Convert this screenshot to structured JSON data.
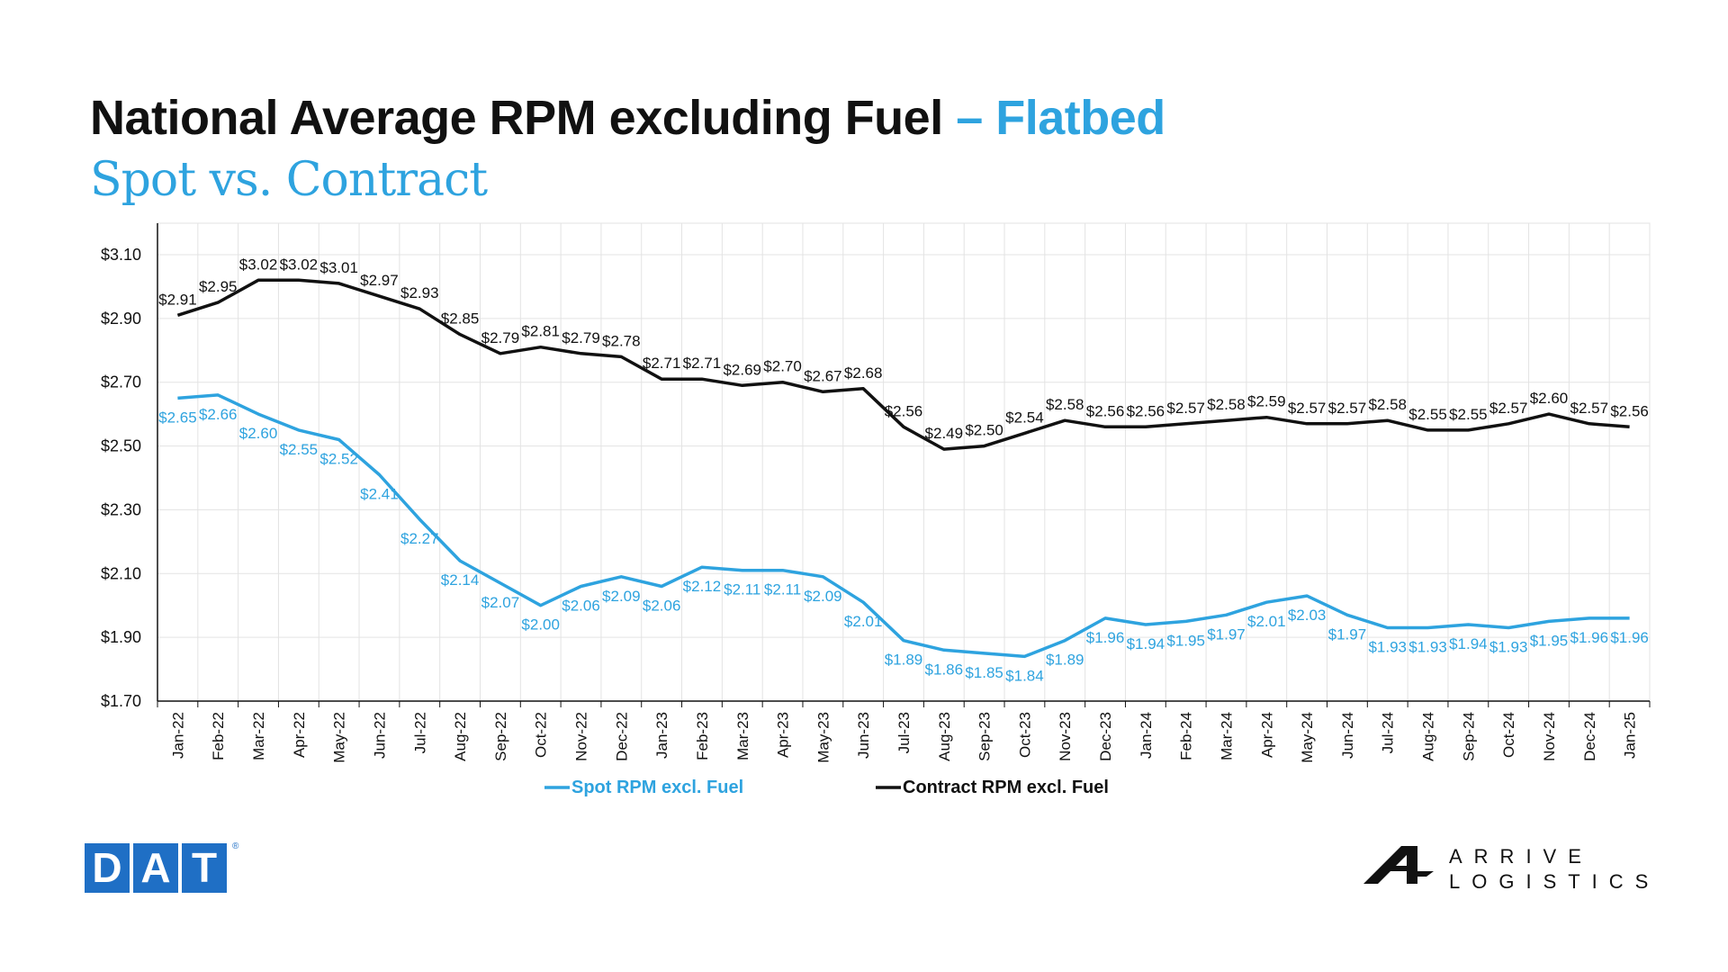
{
  "header": {
    "title_main": "National Average RPM excluding Fuel",
    "title_accent": "– Flatbed",
    "subtitle": "Spot vs. Contract"
  },
  "logos": {
    "dat_letters": [
      "D",
      "A",
      "T"
    ],
    "dat_registered": "®",
    "arrive_line1": "ARRIVE",
    "arrive_line2": "LOGISTICS"
  },
  "colors": {
    "spot": "#2ea3df",
    "contract": "#111111",
    "accent": "#2ea3df",
    "dat_blue": "#1f6fc5",
    "grid": "#e3e3e3"
  },
  "chart_data": {
    "type": "line",
    "x": [
      "Jan-22",
      "Feb-22",
      "Mar-22",
      "Apr-22",
      "May-22",
      "Jun-22",
      "Jul-22",
      "Aug-22",
      "Sep-22",
      "Oct-22",
      "Nov-22",
      "Dec-22",
      "Jan-23",
      "Feb-23",
      "Mar-23",
      "Apr-23",
      "May-23",
      "Jun-23",
      "Jul-23",
      "Aug-23",
      "Sep-23",
      "Oct-23",
      "Nov-23",
      "Dec-23",
      "Jan-24",
      "Feb-24",
      "Mar-24",
      "Apr-24",
      "May-24",
      "Jun-24",
      "Jul-24",
      "Aug-24",
      "Sep-24",
      "Oct-24",
      "Nov-24",
      "Dec-24",
      "Jan-25"
    ],
    "series": [
      {
        "name": "Spot RPM excl. Fuel",
        "color": "#2ea3df",
        "values": [
          2.65,
          2.66,
          2.6,
          2.55,
          2.52,
          2.41,
          2.27,
          2.14,
          2.07,
          2.0,
          2.06,
          2.09,
          2.06,
          2.12,
          2.11,
          2.11,
          2.09,
          2.01,
          1.89,
          1.86,
          1.85,
          1.84,
          1.89,
          1.96,
          1.94,
          1.95,
          1.97,
          2.01,
          2.03,
          1.97,
          1.93,
          1.93,
          1.94,
          1.93,
          1.95,
          1.96,
          1.96
        ],
        "labels": [
          "$2.65",
          "$2.66",
          "$2.60",
          "$2.55",
          "$2.52",
          "$2.41",
          "$2.27",
          "$2.14",
          "$2.07",
          "$2.00",
          "$2.06",
          "$2.09",
          "$2.06",
          "$2.12",
          "$2.11",
          "$2.11",
          "$2.09",
          "$2.01",
          "$1.89",
          "$1.86",
          "$1.85",
          "$1.84",
          "$1.89",
          "$1.96",
          "$1.94",
          "$1.95",
          "$1.97",
          "$2.01",
          "$2.03",
          "$1.97",
          "$1.93",
          "$1.93",
          "$1.94",
          "$1.93",
          "$1.95",
          "$1.96",
          "$1.96"
        ]
      },
      {
        "name": "Contract RPM excl. Fuel",
        "color": "#111111",
        "values": [
          2.91,
          2.95,
          3.02,
          3.02,
          3.01,
          2.97,
          2.93,
          2.85,
          2.79,
          2.81,
          2.79,
          2.78,
          2.71,
          2.71,
          2.69,
          2.7,
          2.67,
          2.68,
          2.56,
          2.49,
          2.5,
          2.54,
          2.58,
          2.56,
          2.56,
          2.57,
          2.58,
          2.59,
          2.57,
          2.57,
          2.58,
          2.55,
          2.55,
          2.57,
          2.6,
          2.57,
          2.56
        ],
        "labels": [
          "$2.91",
          "$2.95",
          "$3.02",
          "$3.02",
          "$3.01",
          "$2.97",
          "$2.93",
          "$2.85",
          "$2.79",
          "$2.81",
          "$2.79",
          "$2.78",
          "$2.71",
          "$2.71",
          "$2.69",
          "$2.70",
          "$2.67",
          "$2.68",
          "$2.56",
          "$2.49",
          "$2.50",
          "$2.54",
          "$2.58",
          "$2.56",
          "$2.56",
          "$2.57",
          "$2.58",
          "$2.59",
          "$2.57",
          "$2.57",
          "$2.58",
          "$2.55",
          "$2.55",
          "$2.57",
          "$2.60",
          "$2.57",
          "$2.56"
        ]
      }
    ],
    "ylim": [
      1.7,
      3.1
    ],
    "yticks": [
      1.7,
      1.9,
      2.1,
      2.3,
      2.5,
      2.7,
      2.9,
      3.1
    ],
    "ytick_labels": [
      "$1.70",
      "$1.90",
      "$2.10",
      "$2.30",
      "$2.50",
      "$2.70",
      "$2.90",
      "$3.10"
    ],
    "grid": true,
    "legend_position": "bottom"
  }
}
